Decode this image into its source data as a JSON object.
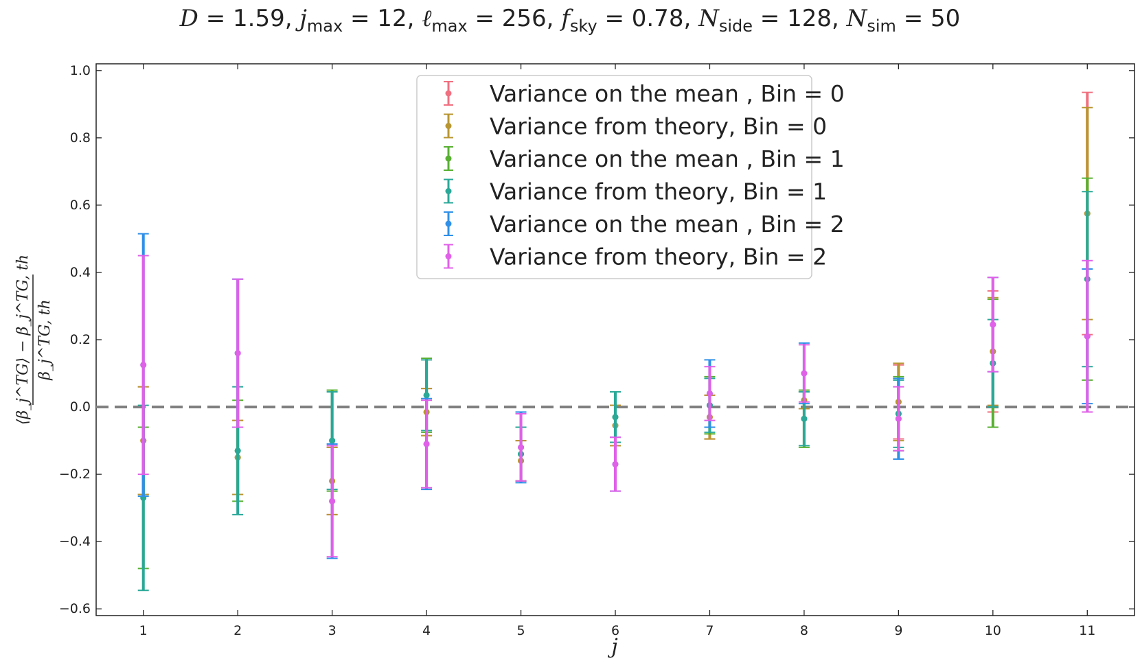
{
  "chart_data": {
    "type": "scatter",
    "title": "D = 1.59,  j_max = 12,  ℓ_max = 256, f_sky = 0.78,  N_side = 128, N_sim = 50",
    "title_parts": {
      "D": "D = 1.59,",
      "jmax_sym": "j",
      "jmax_sub": "max",
      "jmax_val": " = 12,",
      "lmax_sym": "ℓ",
      "lmax_sub": "max",
      "lmax_val": " = 256,",
      "fsky_sym": "f",
      "fsky_sub": "sky",
      "fsky_val": " = 0.78,",
      "nside_sym": "N",
      "nside_sub": "side",
      "nside_val": " = 128,",
      "nsim_sym": "N",
      "nsim_sub": "sim",
      "nsim_val": " = 50"
    },
    "xlabel": "j",
    "ylabel": "(⟨β_j^TG⟩ − β_j^TG,th) / β_j^TG,th",
    "ylabel_parts": {
      "numerator": "⟨β_j^TG⟩ − β_j^TG, th",
      "denominator": "β_j^TG, th"
    },
    "xlim": [
      0.5,
      11.5
    ],
    "ylim": [
      -0.62,
      1.02
    ],
    "xticks": [
      1,
      2,
      3,
      4,
      5,
      6,
      7,
      8,
      9,
      10,
      11
    ],
    "yticks": [
      -0.6,
      -0.4,
      -0.2,
      0.0,
      0.2,
      0.4,
      0.6,
      0.8,
      1.0
    ],
    "ytick_labels": [
      "−0.6",
      "−0.4",
      "−0.2",
      "0.0",
      "0.2",
      "0.4",
      "0.6",
      "0.8",
      "1.0"
    ],
    "reference_line": {
      "y": 0.0,
      "style": "dashed",
      "color": "#808080"
    },
    "grid": false,
    "legend_position": "upper-center",
    "x": [
      1,
      2,
      3,
      4,
      5,
      6,
      7,
      8,
      9,
      10,
      11
    ],
    "series": [
      {
        "name": "Variance on the mean , Bin = 0",
        "color": "#f07080",
        "y": [
          -0.1,
          -0.15,
          -0.22,
          -0.015,
          -0.16,
          -0.055,
          -0.03,
          0.02,
          0.015,
          0.165,
          0.575
        ],
        "err": [
          0.16,
          0.11,
          0.1,
          0.07,
          0.06,
          0.06,
          0.065,
          0.025,
          0.11,
          0.18,
          0.36
        ]
      },
      {
        "name": "Variance from theory, Bin = 0",
        "color": "#b89632",
        "y": [
          -0.1,
          -0.15,
          -0.22,
          -0.015,
          -0.16,
          -0.055,
          -0.03,
          0.02,
          0.015,
          0.165,
          0.575
        ],
        "err": [
          0.16,
          0.11,
          0.1,
          0.07,
          0.06,
          0.06,
          0.065,
          0.025,
          0.115,
          0.16,
          0.315
        ]
      },
      {
        "name": "Variance on the mean , Bin = 1",
        "color": "#58b032",
        "y": [
          -0.27,
          -0.13,
          -0.1,
          0.035,
          -0.14,
          -0.03,
          0.005,
          -0.035,
          -0.02,
          0.13,
          0.38
        ],
        "err": [
          0.21,
          0.15,
          0.15,
          0.11,
          0.08,
          0.075,
          0.085,
          0.085,
          0.11,
          0.19,
          0.3
        ]
      },
      {
        "name": "Variance from theory, Bin = 1",
        "color": "#2aa898",
        "y": [
          -0.27,
          -0.13,
          -0.1,
          0.035,
          -0.14,
          -0.03,
          0.005,
          -0.035,
          -0.02,
          0.13,
          0.38
        ],
        "err": [
          0.275,
          0.19,
          0.145,
          0.105,
          0.08,
          0.075,
          0.08,
          0.08,
          0.1,
          0.13,
          0.26
        ]
      },
      {
        "name": "Variance on the mean , Bin = 2",
        "color": "#3090e8",
        "y": [
          0.125,
          0.16,
          -0.28,
          -0.11,
          -0.12,
          -0.17,
          0.04,
          0.1,
          -0.035,
          0.245,
          0.21
        ],
        "err": [
          0.39,
          0.22,
          0.17,
          0.135,
          0.105,
          0.08,
          0.1,
          0.09,
          0.12,
          0.14,
          0.2
        ]
      },
      {
        "name": "Variance from theory, Bin = 2",
        "color": "#e060e8",
        "y": [
          0.125,
          0.16,
          -0.28,
          -0.11,
          -0.12,
          -0.17,
          0.04,
          0.1,
          -0.035,
          0.245,
          0.21
        ],
        "err": [
          0.325,
          0.22,
          0.165,
          0.13,
          0.1,
          0.08,
          0.08,
          0.085,
          0.095,
          0.14,
          0.225
        ]
      }
    ]
  }
}
